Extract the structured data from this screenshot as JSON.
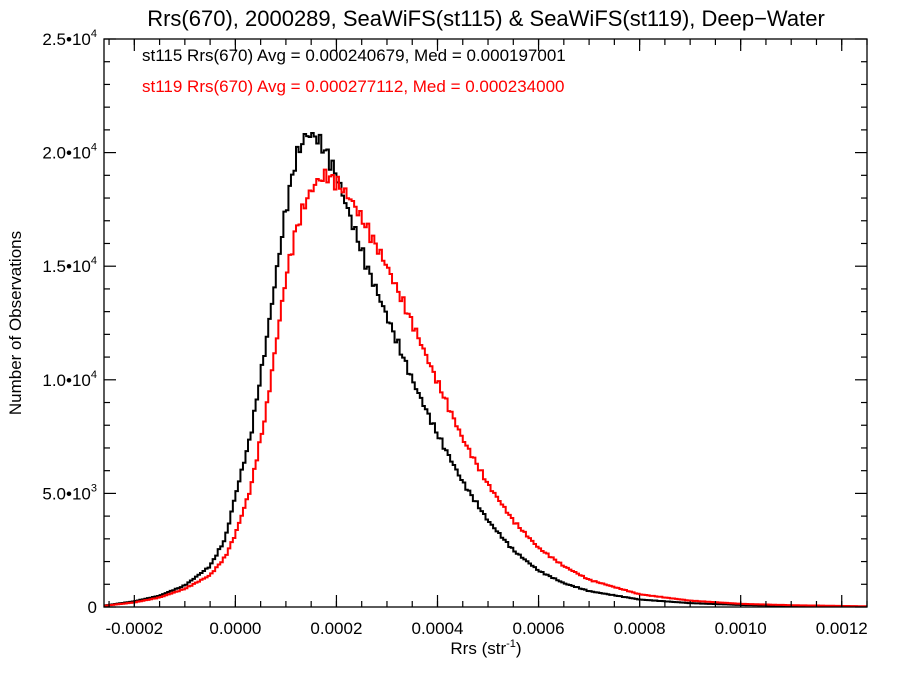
{
  "chart_data": {
    "type": "histogram",
    "title": "Rrs(670), 2000289, SeaWiFS(st115) & SeaWiFS(st119), Deep−Water",
    "xlabel_main": "Rrs (str",
    "xlabel_sup": "-1",
    "xlabel_end": ")",
    "ylabel": "Number of Observations",
    "xlim": [
      -0.00026,
      0.00125
    ],
    "ylim": [
      0,
      25000
    ],
    "x_ticks": [
      {
        "value": -0.0002,
        "label": "-0.0002"
      },
      {
        "value": 0.0,
        "label": "0.0000"
      },
      {
        "value": 0.0002,
        "label": "0.0002"
      },
      {
        "value": 0.0004,
        "label": "0.0004"
      },
      {
        "value": 0.0006,
        "label": "0.0006"
      },
      {
        "value": 0.0008,
        "label": "0.0008"
      },
      {
        "value": 0.001,
        "label": "0.0010"
      },
      {
        "value": 0.0012,
        "label": "0.0012"
      }
    ],
    "y_ticks": [
      {
        "value": 0,
        "base": "0",
        "exp": ""
      },
      {
        "value": 5000,
        "base": "5.0•10",
        "exp": "3"
      },
      {
        "value": 10000,
        "base": "1.0•10",
        "exp": "4"
      },
      {
        "value": 15000,
        "base": "1.5•10",
        "exp": "4"
      },
      {
        "value": 20000,
        "base": "2.0•10",
        "exp": "4"
      },
      {
        "value": 25000,
        "base": "2.5•10",
        "exp": "4"
      }
    ],
    "bin_width": 5e-06,
    "bin_start": -0.00026,
    "series": [
      {
        "name": "st115",
        "color": "#000000",
        "legend": "st115 Rrs(670) Avg = 0.000240679, Med = 0.000197001",
        "anchors": [
          [
            -0.00026,
            60
          ],
          [
            -0.0002,
            250
          ],
          [
            -0.00015,
            500
          ],
          [
            -0.0001,
            950
          ],
          [
            -5e-05,
            1800
          ],
          [
            -2e-05,
            3000
          ],
          [
            0.0,
            4900
          ],
          [
            3e-05,
            7500
          ],
          [
            6e-05,
            11500
          ],
          [
            8e-05,
            14500
          ],
          [
            0.0001,
            17500
          ],
          [
            0.00012,
            19800
          ],
          [
            0.00014,
            20800
          ],
          [
            0.00016,
            20700
          ],
          [
            0.00018,
            20000
          ],
          [
            0.0002,
            19000
          ],
          [
            0.00023,
            17000
          ],
          [
            0.00026,
            15000
          ],
          [
            0.0003,
            12800
          ],
          [
            0.00035,
            10000
          ],
          [
            0.0004,
            7600
          ],
          [
            0.00045,
            5500
          ],
          [
            0.0005,
            3800
          ],
          [
            0.00055,
            2500
          ],
          [
            0.0006,
            1600
          ],
          [
            0.00065,
            1050
          ],
          [
            0.0007,
            700
          ],
          [
            0.0008,
            330
          ],
          [
            0.0009,
            170
          ],
          [
            0.001,
            90
          ],
          [
            0.0011,
            50
          ],
          [
            0.00125,
            20
          ]
        ]
      },
      {
        "name": "st119",
        "color": "#ff0000",
        "legend": "st119 Rrs(670) Avg = 0.000277112, Med = 0.000234000",
        "anchors": [
          [
            -0.00026,
            50
          ],
          [
            -0.0002,
            200
          ],
          [
            -0.00015,
            420
          ],
          [
            -0.0001,
            800
          ],
          [
            -5e-05,
            1400
          ],
          [
            -2e-05,
            2200
          ],
          [
            0.0,
            3200
          ],
          [
            3e-05,
            5200
          ],
          [
            6e-05,
            8500
          ],
          [
            8e-05,
            11500
          ],
          [
            0.0001,
            14500
          ],
          [
            0.00012,
            16600
          ],
          [
            0.00014,
            17900
          ],
          [
            0.00016,
            18700
          ],
          [
            0.00018,
            19000
          ],
          [
            0.0002,
            18700
          ],
          [
            0.00023,
            17900
          ],
          [
            0.00026,
            16700
          ],
          [
            0.0003,
            15000
          ],
          [
            0.00035,
            12500
          ],
          [
            0.0004,
            9900
          ],
          [
            0.00045,
            7400
          ],
          [
            0.0005,
            5400
          ],
          [
            0.00055,
            3800
          ],
          [
            0.0006,
            2600
          ],
          [
            0.00065,
            1800
          ],
          [
            0.0007,
            1200
          ],
          [
            0.0008,
            560
          ],
          [
            0.0009,
            280
          ],
          [
            0.001,
            140
          ],
          [
            0.0011,
            80
          ],
          [
            0.00125,
            30
          ]
        ]
      }
    ]
  }
}
